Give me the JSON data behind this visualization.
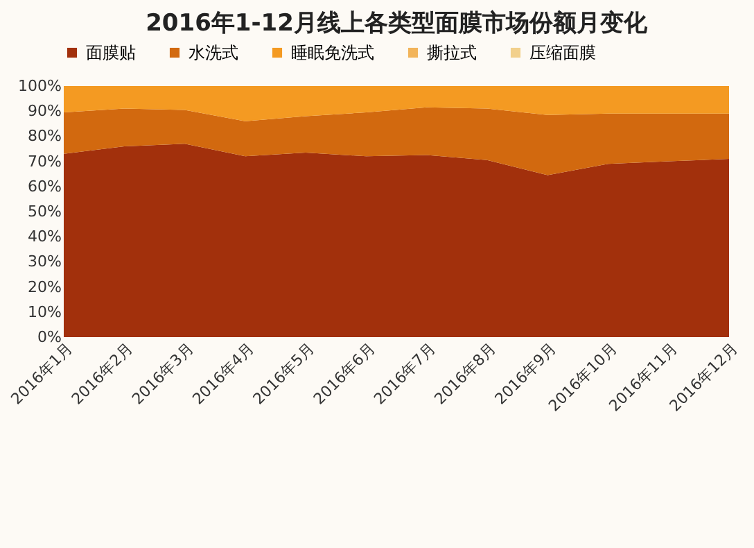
{
  "chart_data": {
    "type": "area",
    "stacked": true,
    "title": "2016年1-12月线上各类型面膜市场份额月变化",
    "categories": [
      "2016年1月",
      "2016年2月",
      "2016年3月",
      "2016年4月",
      "2016年5月",
      "2016年6月",
      "2016年7月",
      "2016年8月",
      "2016年9月",
      "2016年10月",
      "2016年11月",
      "2016年12月"
    ],
    "series": [
      {
        "name": "面膜贴",
        "color": "#a2300c",
        "values": [
          73,
          76,
          77,
          72,
          73.5,
          72,
          72.5,
          70.5,
          64.5,
          69,
          70,
          71
        ]
      },
      {
        "name": "水洗式",
        "color": "#d2690f",
        "values": [
          16.5,
          15,
          13.5,
          14,
          14.5,
          17.5,
          19,
          20.5,
          24,
          20,
          19,
          18
        ]
      },
      {
        "name": "睡眠免洗式",
        "color": "#f49a22",
        "values": [
          10.5,
          9,
          9.5,
          14,
          12,
          10.5,
          8.5,
          9,
          11.5,
          11,
          11,
          11
        ]
      },
      {
        "name": "撕拉式",
        "color": "#f2b45a",
        "values": [
          null,
          null,
          null,
          null,
          null,
          null,
          null,
          null,
          null,
          null,
          null,
          null
        ]
      },
      {
        "name": "压缩面膜",
        "color": "#f2d08c",
        "values": [
          null,
          null,
          null,
          null,
          null,
          null,
          null,
          null,
          null,
          null,
          null,
          null
        ]
      }
    ],
    "ylim": [
      0,
      100
    ],
    "yticks": [
      {
        "value": 0,
        "label": "0%"
      },
      {
        "value": 10,
        "label": "10%"
      },
      {
        "value": 20,
        "label": "20%"
      },
      {
        "value": 30,
        "label": "30%"
      },
      {
        "value": 40,
        "label": "40%"
      },
      {
        "value": 50,
        "label": "50%"
      },
      {
        "value": 60,
        "label": "60%"
      },
      {
        "value": 70,
        "label": "70%"
      },
      {
        "value": 80,
        "label": "80%"
      },
      {
        "value": 90,
        "label": "90%"
      },
      {
        "value": 100,
        "label": "100%"
      }
    ],
    "legend": "top",
    "grid": false
  }
}
